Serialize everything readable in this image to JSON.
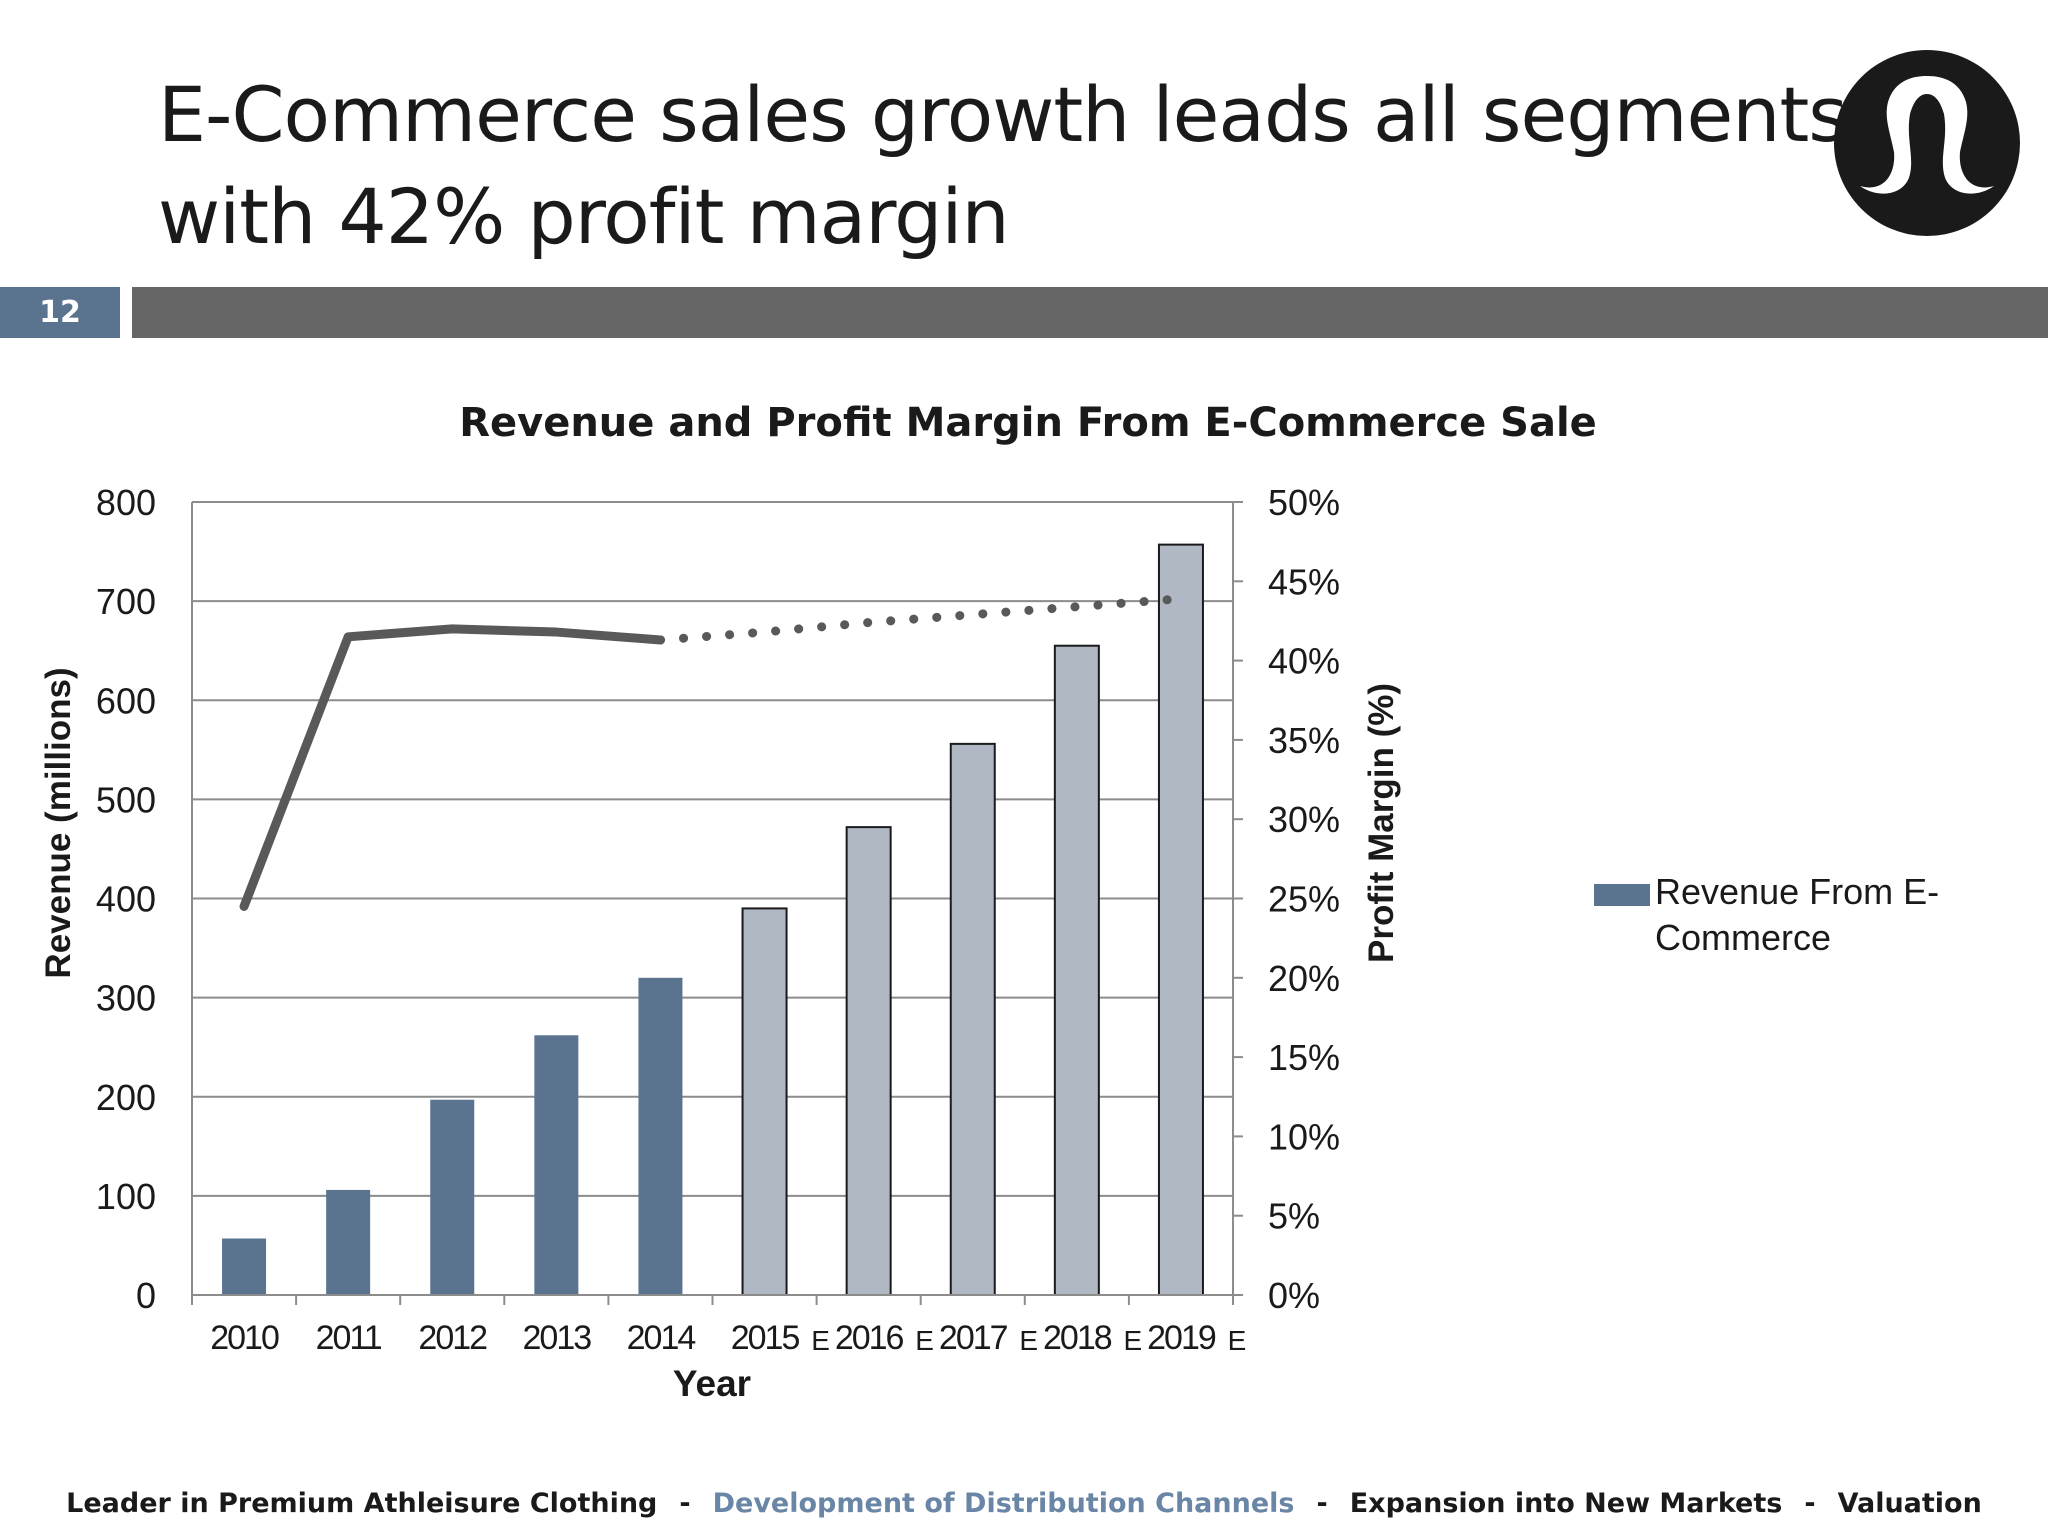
{
  "slide": {
    "title_line1": "E-Commerce sales growth leads all segments",
    "title_line2": "with 42% profit margin",
    "page_number": "12"
  },
  "footer": {
    "items": [
      "Leader in Premium Athleisure Clothing",
      "Development of Distribution Channels",
      "Expansion into New Markets",
      "Valuation"
    ],
    "separator": "-",
    "active_index": 1
  },
  "colors": {
    "bar_actual": "#5a7490",
    "bar_estimate": "#b0b8c4",
    "line": "#595959",
    "accent": "#5a7490"
  },
  "chart_data": {
    "type": "bar",
    "title": "Revenue and Profit Margin From E-Commerce Sale",
    "xlabel": "Year",
    "ylabel": "Revenue (millions)",
    "y2label": "Profit Margin (%)",
    "ylim": [
      0,
      800
    ],
    "y2lim": [
      0,
      50
    ],
    "yticks": [
      "0",
      "100",
      "200",
      "300",
      "400",
      "500",
      "600",
      "700",
      "800"
    ],
    "y2ticks": [
      "0%",
      "5%",
      "10%",
      "15%",
      "20%",
      "25%",
      "30%",
      "35%",
      "40%",
      "45%",
      "50%"
    ],
    "categories": [
      "2010",
      "2011",
      "2012",
      "2013",
      "2014",
      "2015",
      "2016",
      "2017",
      "2018",
      "2019"
    ],
    "estimate_marker": "E",
    "grid": true,
    "legend_position": "right",
    "series": [
      {
        "name": "Revenue From E-Commerce",
        "type": "bar",
        "axis": "left",
        "values": [
          57,
          106,
          197,
          262,
          320,
          390,
          472,
          556,
          655,
          757
        ],
        "estimated": [
          false,
          false,
          false,
          false,
          false,
          true,
          true,
          true,
          true,
          true
        ]
      },
      {
        "type": "line",
        "axis": "right",
        "values": [
          24.5,
          41.5,
          42.0,
          41.8,
          41.3,
          null,
          null,
          null,
          null,
          null
        ]
      },
      {
        "type": "line",
        "axis": "right",
        "style": "dotted",
        "values": [
          null,
          null,
          null,
          null,
          41.3,
          41.8,
          42.4,
          42.9,
          43.4,
          43.9
        ]
      }
    ]
  }
}
